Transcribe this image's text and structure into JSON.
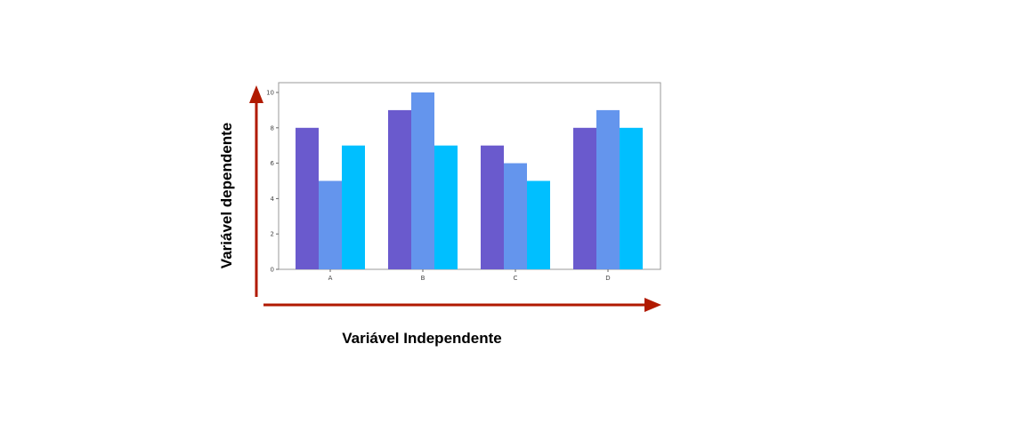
{
  "chart_data": {
    "type": "bar",
    "categories": [
      "A",
      "B",
      "C",
      "D"
    ],
    "series": [
      {
        "values": [
          8,
          9,
          7,
          8
        ]
      },
      {
        "values": [
          5,
          10,
          6,
          9
        ]
      },
      {
        "values": [
          7,
          7,
          5,
          8
        ]
      }
    ],
    "colors": [
      "#6a5acd",
      "#6495ed",
      "#00bfff"
    ],
    "ylim": [
      0,
      10
    ],
    "yticks": [
      0,
      2,
      4,
      6,
      8,
      10
    ],
    "ytick_labels": [
      "0",
      "2",
      "4",
      "6",
      "8",
      "10"
    ],
    "xlabel": "Variável Independente",
    "ylabel": "Variável dependente",
    "grid": false,
    "arrow_color": "#b11a00"
  }
}
